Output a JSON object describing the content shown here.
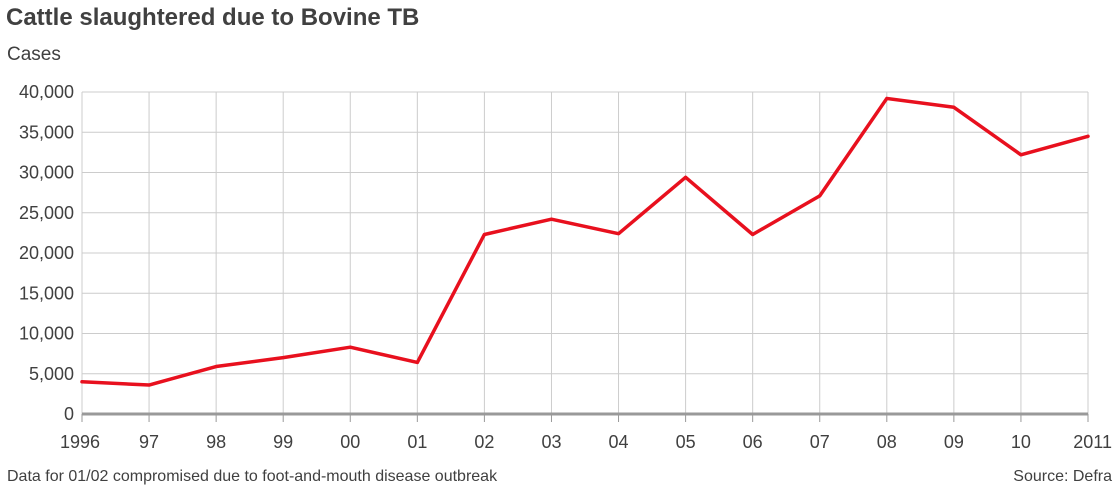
{
  "chart_data": {
    "type": "line",
    "title": "Cattle slaughtered due to Bovine TB",
    "ylabel": "Cases",
    "xlabel": "",
    "categories": [
      "1996",
      "97",
      "98",
      "99",
      "00",
      "01",
      "02",
      "03",
      "04",
      "05",
      "06",
      "07",
      "08",
      "09",
      "10",
      "2011"
    ],
    "series": [
      {
        "values": [
          4000,
          3600,
          5900,
          7000,
          8300,
          6400,
          22300,
          24200,
          22400,
          29400,
          22300,
          27100,
          39200,
          38100,
          32200,
          34500
        ],
        "color": "#e8101e"
      }
    ],
    "ylim": [
      0,
      40000
    ],
    "yticks": [
      0,
      5000,
      10000,
      15000,
      20000,
      25000,
      30000,
      35000,
      40000
    ],
    "ytick_labels": [
      "0",
      "5,000",
      "10,000",
      "15,000",
      "20,000",
      "25,000",
      "30,000",
      "35,000",
      "40,000"
    ],
    "grid": true,
    "grid_color": "#cccccc",
    "axis_color": "#999999",
    "footnote": "Data for 01/02 compromised due to foot-and-mouth disease outbreak",
    "source": "Source: Defra"
  }
}
